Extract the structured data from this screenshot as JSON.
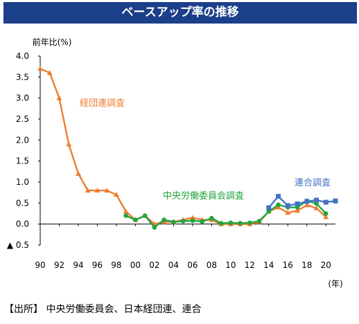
{
  "header": {
    "title": "ベースアップ率の推移"
  },
  "footer": {
    "source": "【出所】 中央労働委員会、日本経団連、連合"
  },
  "chart_data": {
    "type": "line",
    "title": "ベースアップ率の推移",
    "ylabel": "前年比(%)",
    "xlabel": "(年)",
    "ylim": [
      -0.5,
      4.0
    ],
    "xlim": [
      1990,
      2021
    ],
    "y_ticks": [
      {
        "value": 4.0,
        "label": "4.0"
      },
      {
        "value": 3.5,
        "label": "3.5"
      },
      {
        "value": 3.0,
        "label": "3.0"
      },
      {
        "value": 2.5,
        "label": "2.5"
      },
      {
        "value": 2.0,
        "label": "2.0"
      },
      {
        "value": 1.5,
        "label": "1.5"
      },
      {
        "value": 1.0,
        "label": "1.0"
      },
      {
        "value": 0.5,
        "label": "0.5"
      },
      {
        "value": 0.0,
        "label": "0.0"
      },
      {
        "value": -0.5,
        "label": "▲ 0.5"
      }
    ],
    "x_ticks": [
      {
        "value": 1990,
        "label": "90"
      },
      {
        "value": 1992,
        "label": "92"
      },
      {
        "value": 1994,
        "label": "94"
      },
      {
        "value": 1996,
        "label": "96"
      },
      {
        "value": 1998,
        "label": "98"
      },
      {
        "value": 2000,
        "label": "00"
      },
      {
        "value": 2002,
        "label": "02"
      },
      {
        "value": 2004,
        "label": "04"
      },
      {
        "value": 2006,
        "label": "06"
      },
      {
        "value": 2008,
        "label": "08"
      },
      {
        "value": 2010,
        "label": "10"
      },
      {
        "value": 2012,
        "label": "12"
      },
      {
        "value": 2014,
        "label": "14"
      },
      {
        "value": 2016,
        "label": "16"
      },
      {
        "value": 2018,
        "label": "18"
      },
      {
        "value": 2020,
        "label": "20"
      }
    ],
    "grid": false,
    "series": [
      {
        "name": "経団連調査",
        "color": "#ed7d31",
        "marker": "triangle",
        "x": [
          1990,
          1991,
          1992,
          1993,
          1994,
          1995,
          1996,
          1997,
          1998,
          1999,
          2000,
          2001,
          2002,
          2003,
          2004,
          2005,
          2006,
          2007,
          2008,
          2009,
          2010,
          2011,
          2012,
          2013,
          2014,
          2015,
          2016,
          2017,
          2018,
          2019,
          2020
        ],
        "values": [
          3.7,
          3.6,
          3.0,
          1.9,
          1.2,
          0.8,
          0.8,
          0.8,
          0.7,
          0.3,
          0.1,
          0.2,
          0.0,
          0.05,
          0.05,
          0.1,
          0.15,
          0.1,
          0.1,
          0.0,
          0.0,
          0.0,
          0.0,
          0.05,
          0.3,
          0.4,
          0.27,
          0.32,
          0.45,
          0.38,
          0.17
        ]
      },
      {
        "name": "中央労働委員会調査",
        "color": "#22a53a",
        "marker": "circle",
        "x": [
          1999,
          2000,
          2001,
          2002,
          2003,
          2004,
          2005,
          2006,
          2007,
          2008,
          2009,
          2010,
          2011,
          2012,
          2013,
          2014,
          2015,
          2016,
          2017,
          2018,
          2019,
          2020
        ],
        "values": [
          0.2,
          0.1,
          0.2,
          -0.08,
          0.1,
          0.05,
          0.07,
          0.08,
          0.06,
          0.14,
          0.02,
          0.03,
          0.02,
          0.03,
          0.07,
          0.3,
          0.46,
          0.4,
          0.4,
          0.55,
          0.49,
          0.25
        ]
      },
      {
        "name": "連合調査",
        "color": "#4472c4",
        "marker": "square",
        "x": [
          2014,
          2015,
          2016,
          2017,
          2018,
          2019,
          2020,
          2021
        ],
        "values": [
          0.39,
          0.66,
          0.44,
          0.48,
          0.54,
          0.57,
          0.52,
          0.55
        ]
      }
    ]
  }
}
